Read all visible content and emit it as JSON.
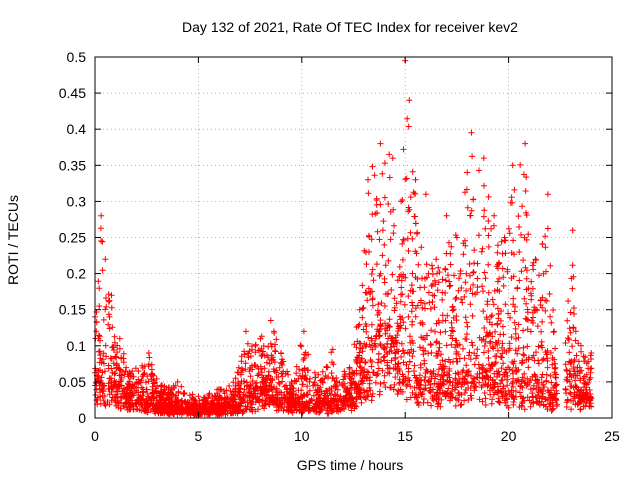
{
  "chart_data": {
    "type": "scatter",
    "title": "Day 132 of 2021, Rate Of TEC Index for receiver kev2",
    "xlabel": "GPS time / hours",
    "ylabel": "ROTI / TECUs",
    "xlim": [
      0,
      25
    ],
    "ylim": [
      0,
      0.5
    ],
    "xticks": [
      0,
      5,
      10,
      15,
      20,
      25
    ],
    "yticks": [
      0,
      0.05,
      0.1,
      0.15,
      0.2,
      0.25,
      0.3,
      0.35,
      0.4,
      0.45,
      0.5
    ],
    "grid": true,
    "marker": "+",
    "color": "#ff0000",
    "envelope": [
      {
        "x": 0.0,
        "y": 0.14
      },
      {
        "x": 0.3,
        "y": 0.28
      },
      {
        "x": 0.5,
        "y": 0.22
      },
      {
        "x": 0.8,
        "y": 0.17
      },
      {
        "x": 1.2,
        "y": 0.11
      },
      {
        "x": 1.8,
        "y": 0.065
      },
      {
        "x": 2.6,
        "y": 0.09
      },
      {
        "x": 3.2,
        "y": 0.045
      },
      {
        "x": 4.0,
        "y": 0.05
      },
      {
        "x": 5.0,
        "y": 0.03
      },
      {
        "x": 6.0,
        "y": 0.04
      },
      {
        "x": 6.8,
        "y": 0.055
      },
      {
        "x": 7.3,
        "y": 0.12
      },
      {
        "x": 8.0,
        "y": 0.11
      },
      {
        "x": 8.5,
        "y": 0.135
      },
      {
        "x": 9.0,
        "y": 0.09
      },
      {
        "x": 9.5,
        "y": 0.05
      },
      {
        "x": 10.1,
        "y": 0.12
      },
      {
        "x": 10.8,
        "y": 0.06
      },
      {
        "x": 11.5,
        "y": 0.095
      },
      {
        "x": 12.3,
        "y": 0.07
      },
      {
        "x": 12.8,
        "y": 0.15
      },
      {
        "x": 13.2,
        "y": 0.33
      },
      {
        "x": 13.8,
        "y": 0.38
      },
      {
        "x": 14.4,
        "y": 0.36
      },
      {
        "x": 14.8,
        "y": 0.3
      },
      {
        "x": 15.0,
        "y": 0.495
      },
      {
        "x": 15.2,
        "y": 0.44
      },
      {
        "x": 15.5,
        "y": 0.33
      },
      {
        "x": 16.0,
        "y": 0.31
      },
      {
        "x": 16.5,
        "y": 0.22
      },
      {
        "x": 17.0,
        "y": 0.28
      },
      {
        "x": 17.5,
        "y": 0.25
      },
      {
        "x": 18.0,
        "y": 0.34
      },
      {
        "x": 18.2,
        "y": 0.395
      },
      {
        "x": 18.8,
        "y": 0.36
      },
      {
        "x": 19.3,
        "y": 0.28
      },
      {
        "x": 19.8,
        "y": 0.25
      },
      {
        "x": 20.2,
        "y": 0.35
      },
      {
        "x": 20.8,
        "y": 0.38
      },
      {
        "x": 21.3,
        "y": 0.22
      },
      {
        "x": 21.9,
        "y": 0.31
      },
      {
        "x": 22.2,
        "y": 0.12
      },
      {
        "x": 22.6,
        "y": 0.08
      },
      {
        "x": 23.1,
        "y": 0.26
      },
      {
        "x": 23.5,
        "y": 0.1
      },
      {
        "x": 24.0,
        "y": 0.09
      }
    ],
    "baseline": [
      {
        "x": 0.0,
        "y": 0.05
      },
      {
        "x": 0.8,
        "y": 0.05
      },
      {
        "x": 1.5,
        "y": 0.03
      },
      {
        "x": 3.0,
        "y": 0.015
      },
      {
        "x": 5.0,
        "y": 0.01
      },
      {
        "x": 7.0,
        "y": 0.015
      },
      {
        "x": 8.2,
        "y": 0.04
      },
      {
        "x": 9.5,
        "y": 0.02
      },
      {
        "x": 12.0,
        "y": 0.02
      },
      {
        "x": 13.0,
        "y": 0.05
      },
      {
        "x": 14.0,
        "y": 0.12
      },
      {
        "x": 15.0,
        "y": 0.06
      },
      {
        "x": 16.5,
        "y": 0.04
      },
      {
        "x": 18.5,
        "y": 0.05
      },
      {
        "x": 20.5,
        "y": 0.04
      },
      {
        "x": 22.0,
        "y": 0.03
      },
      {
        "x": 24.0,
        "y": 0.03
      }
    ],
    "gaps": [
      [
        22.35,
        22.75
      ]
    ],
    "point_count": 3200
  }
}
